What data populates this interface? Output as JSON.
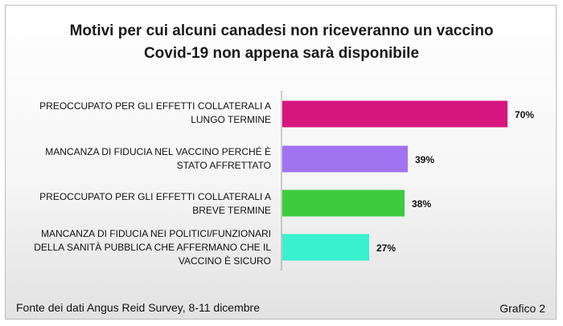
{
  "chart_data": {
    "type": "bar",
    "orientation": "horizontal",
    "title_lines": [
      "Motivi per cui alcuni canadesi non riceveranno un vaccino",
      "Covid-19 non appena sarà disponibile"
    ],
    "categories": [
      [
        "PREOCCUPATO PER GLI EFFETTI COLLATERALI A",
        "LUNGO TERMINE"
      ],
      [
        "MANCANZA DI FIDUCIA NEL VACCINO PERCHÉ È",
        "STATO AFFRETTATO"
      ],
      [
        "PREOCCUPATO PER GLI EFFETTI COLLATERALI A",
        "BREVE TERMINE"
      ],
      [
        "MANCANZA DI FIDUCIA NEI POLITICI/FUNZIONARI",
        "DELLA SANITÀ PUBBLICA CHE AFFERMANO CHE IL",
        "VACCINO È SICURO"
      ]
    ],
    "values": [
      70,
      39,
      38,
      27
    ],
    "value_labels": [
      "70%",
      "39%",
      "38%",
      "27%"
    ],
    "colors": [
      "#d6157f",
      "#a173f0",
      "#3ecb3e",
      "#39f0cf"
    ],
    "xlim": [
      0,
      100
    ],
    "grid": false,
    "legend": "none"
  },
  "footer": {
    "source": "Fonte dei dati Angus Reid Survey, 8-11 dicembre",
    "chart_number": "Grafico 2"
  }
}
